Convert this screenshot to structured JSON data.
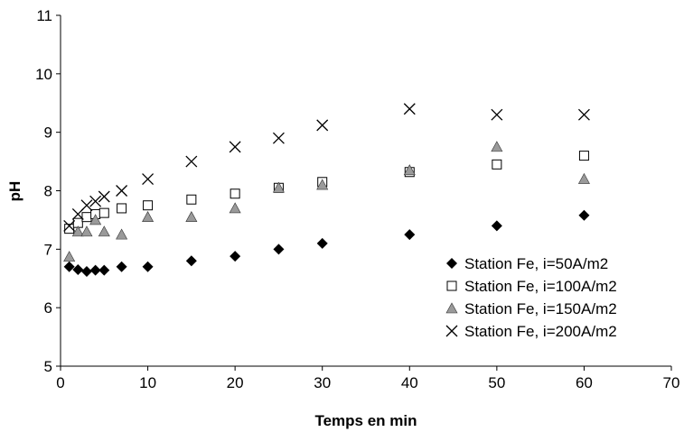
{
  "chart_data": {
    "type": "scatter",
    "xlabel": "Temps en min",
    "ylabel": "pH",
    "xlim": [
      0,
      70
    ],
    "ylim": [
      5,
      11
    ],
    "xticks": [
      0,
      10,
      20,
      30,
      40,
      50,
      60,
      70
    ],
    "yticks": [
      5,
      6,
      7,
      8,
      9,
      10,
      11
    ],
    "grid": false,
    "legend_position": "bottom-right",
    "series": [
      {
        "name": "Station Fe, i=50A/m2",
        "marker": "diamond",
        "color": "#000000",
        "points": [
          [
            1,
            6.7
          ],
          [
            2,
            6.65
          ],
          [
            3,
            6.62
          ],
          [
            4,
            6.64
          ],
          [
            5,
            6.64
          ],
          [
            7,
            6.7
          ],
          [
            10,
            6.7
          ],
          [
            15,
            6.8
          ],
          [
            20,
            6.88
          ],
          [
            25,
            7.0
          ],
          [
            30,
            7.1
          ],
          [
            40,
            7.25
          ],
          [
            50,
            7.4
          ],
          [
            60,
            7.58
          ]
        ]
      },
      {
        "name": "Station Fe, i=100A/m2",
        "marker": "square-open",
        "color": "#000000",
        "points": [
          [
            1,
            7.35
          ],
          [
            2,
            7.45
          ],
          [
            3,
            7.55
          ],
          [
            4,
            7.6
          ],
          [
            5,
            7.62
          ],
          [
            7,
            7.7
          ],
          [
            10,
            7.75
          ],
          [
            15,
            7.85
          ],
          [
            20,
            7.95
          ],
          [
            25,
            8.05
          ],
          [
            30,
            8.15
          ],
          [
            40,
            8.32
          ],
          [
            50,
            8.45
          ],
          [
            60,
            8.6
          ]
        ]
      },
      {
        "name": "Station Fe, i=150A/m2",
        "marker": "triangle",
        "color": "#9a9a9a",
        "points": [
          [
            1,
            6.87
          ],
          [
            2,
            7.3
          ],
          [
            3,
            7.3
          ],
          [
            4,
            7.5
          ],
          [
            5,
            7.3
          ],
          [
            7,
            7.25
          ],
          [
            10,
            7.55
          ],
          [
            15,
            7.55
          ],
          [
            20,
            7.7
          ],
          [
            25,
            8.05
          ],
          [
            30,
            8.1
          ],
          [
            40,
            8.35
          ],
          [
            50,
            8.75
          ],
          [
            60,
            8.2
          ]
        ]
      },
      {
        "name": "Station Fe, i=200A/m2",
        "marker": "x",
        "color": "#000000",
        "points": [
          [
            1,
            7.4
          ],
          [
            2,
            7.6
          ],
          [
            3,
            7.75
          ],
          [
            4,
            7.82
          ],
          [
            5,
            7.9
          ],
          [
            7,
            8.0
          ],
          [
            10,
            8.2
          ],
          [
            15,
            8.5
          ],
          [
            20,
            8.75
          ],
          [
            25,
            8.9
          ],
          [
            30,
            9.12
          ],
          [
            40,
            9.4
          ],
          [
            50,
            9.3
          ],
          [
            60,
            9.3
          ]
        ]
      }
    ]
  }
}
